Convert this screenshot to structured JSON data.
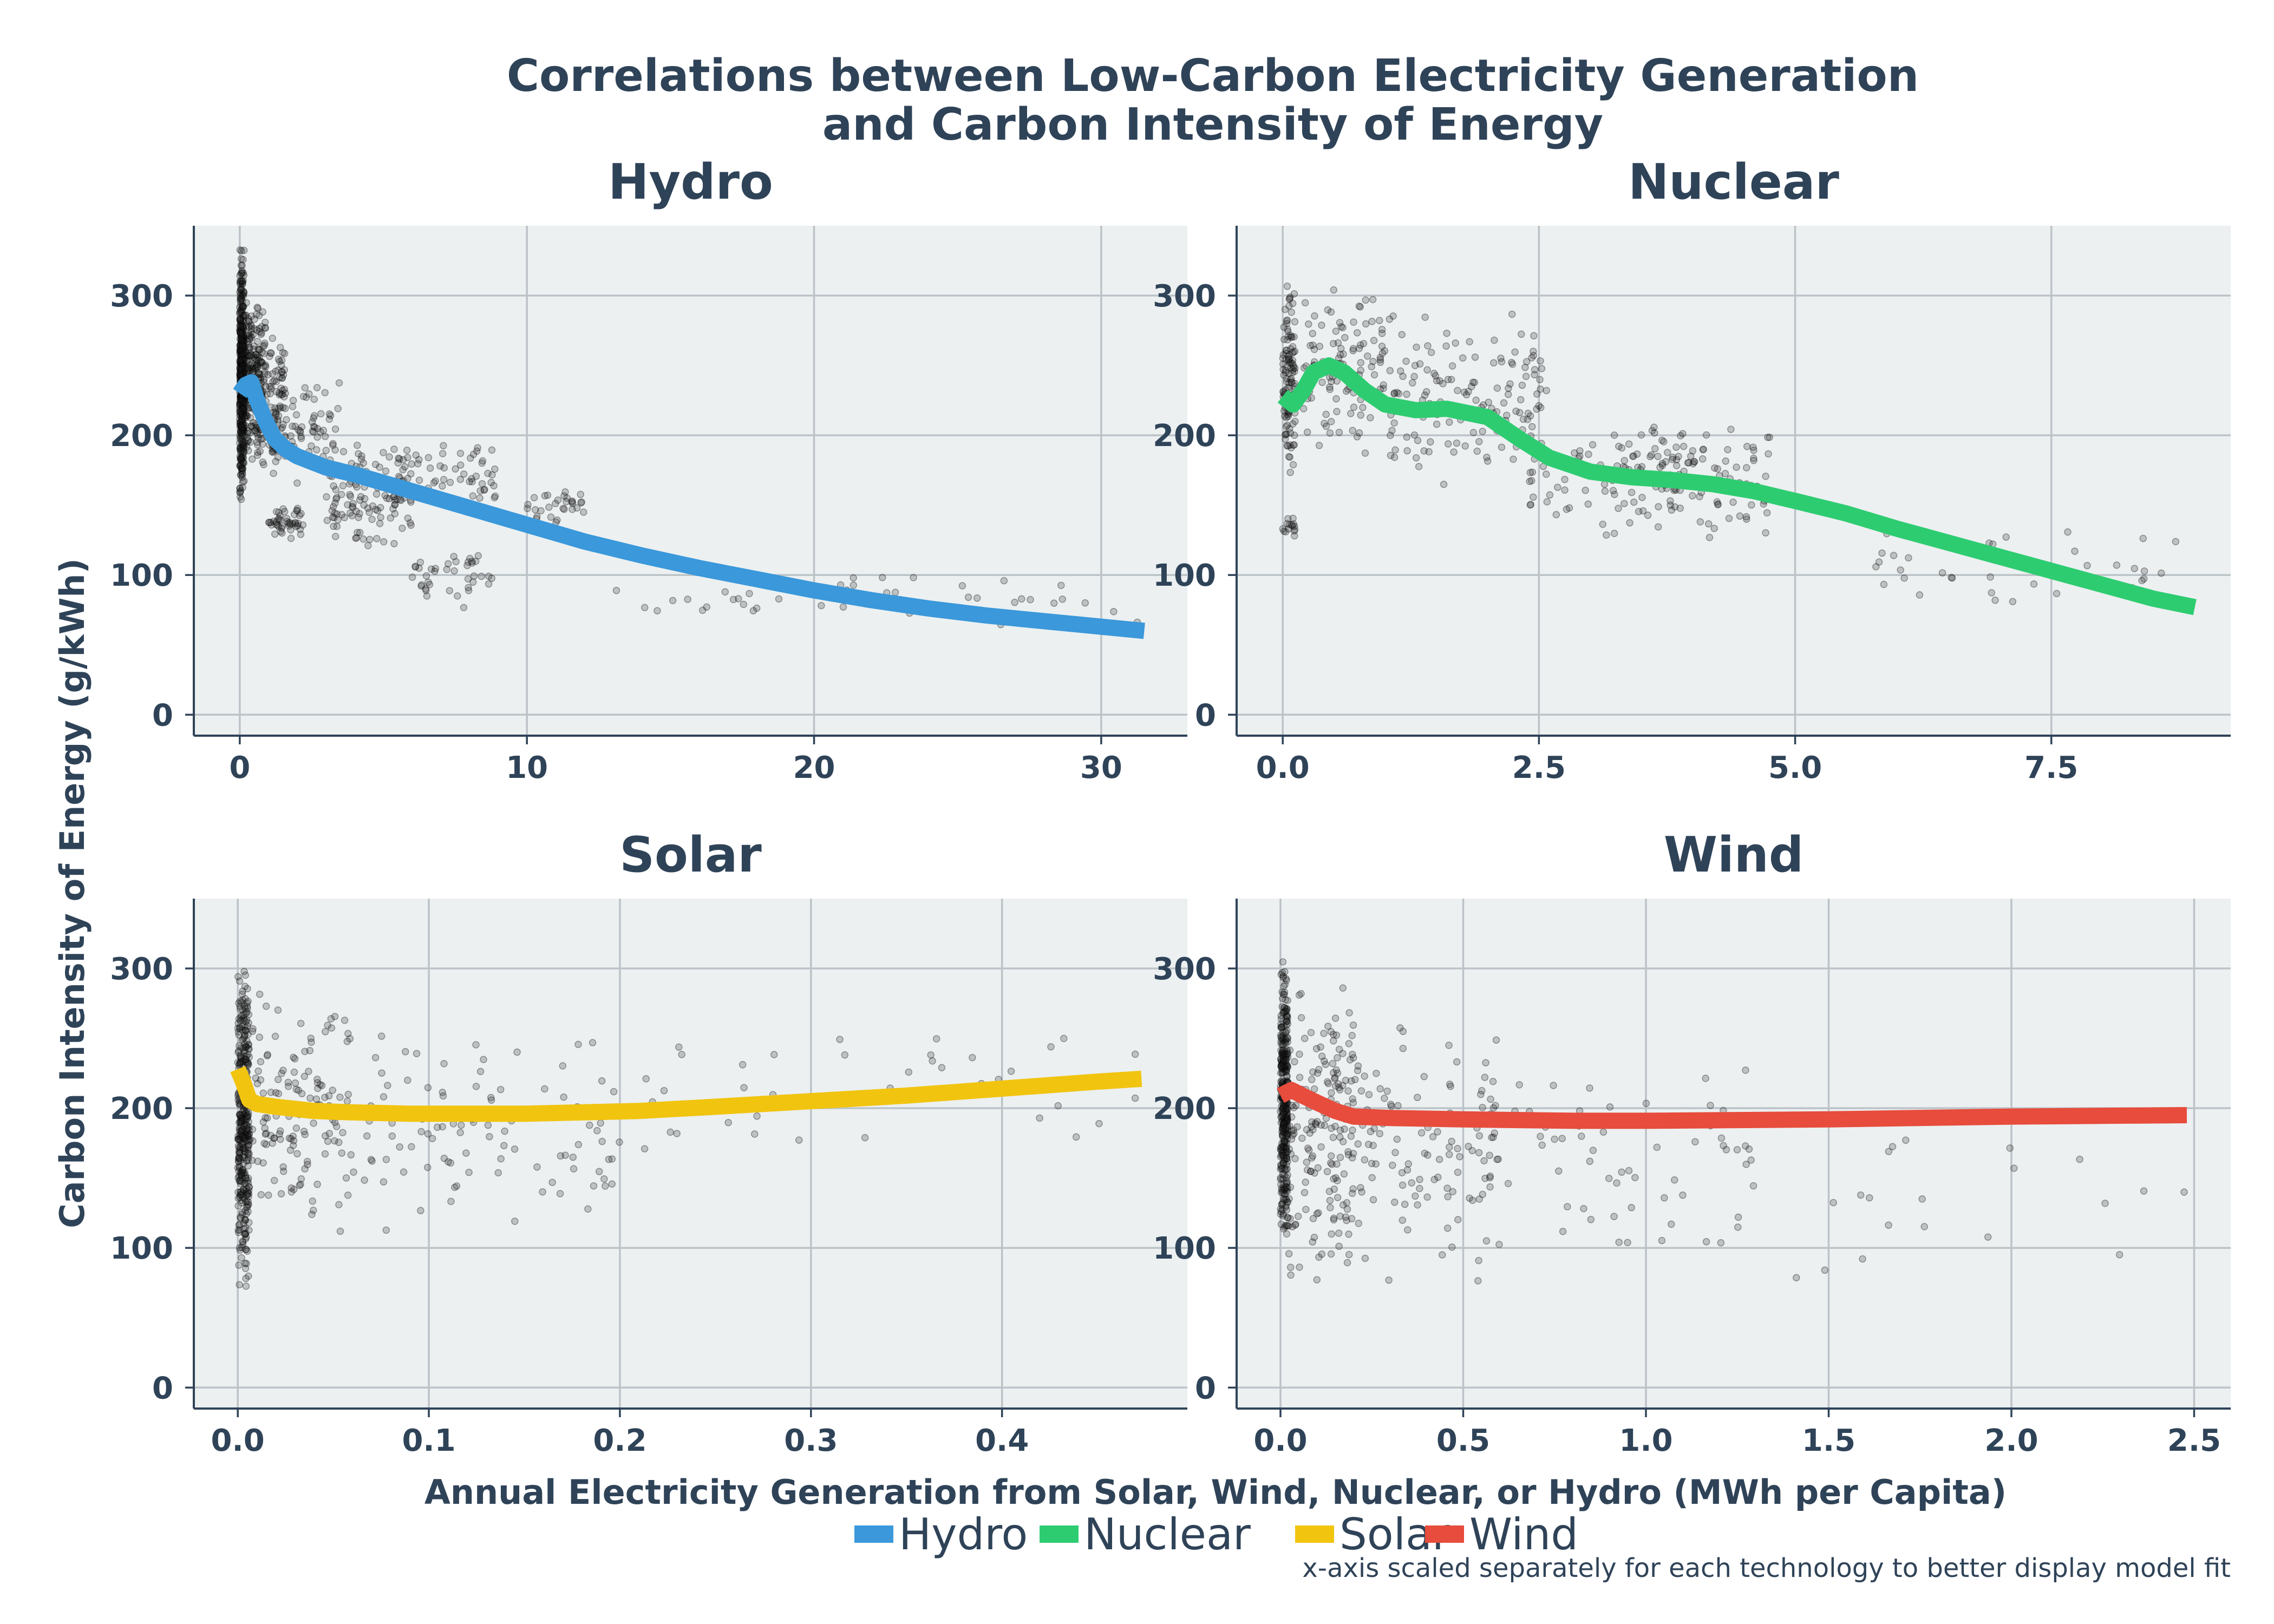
{
  "figure": {
    "title_line1": "Correlations between Low-Carbon Electricity Generation",
    "title_line2": "and Carbon Intensity of Energy",
    "ylabel": "Carbon Intensity of Energy (g/kWh)",
    "xlabel": "Annual Electricity Generation from Solar, Wind, Nuclear, or Hydro (MWh per Capita)",
    "note": "x-axis scaled separately for each technology to better display model fit"
  },
  "legend": {
    "placement": "bottom-center",
    "items": [
      {
        "label": "Hydro",
        "color": "#3a98db"
      },
      {
        "label": "Nuclear",
        "color": "#2ecc71"
      },
      {
        "label": "Solar",
        "color": "#f1c40f"
      },
      {
        "label": "Wind",
        "color": "#e74c3c"
      }
    ]
  },
  "chart_data": [
    {
      "type": "scatter",
      "title": "Hydro",
      "color": "#3a98db",
      "xlim": [
        -1.6,
        33
      ],
      "ylim": [
        -15,
        350
      ],
      "xticks": [
        0,
        10,
        20,
        30
      ],
      "xtick_labels": [
        "0",
        "10",
        "20",
        "30"
      ],
      "yticks": [
        0,
        100,
        200,
        300
      ],
      "ytick_labels": [
        "0",
        "100",
        "200",
        "300"
      ],
      "grid": true,
      "fit_line": {
        "x": [
          0,
          0.2,
          0.4,
          0.6,
          0.9,
          1.2,
          1.6,
          2,
          3,
          4,
          5,
          6,
          8,
          10,
          12,
          14,
          16,
          18,
          20,
          22,
          24,
          26,
          28,
          30,
          31.5
        ],
        "y": [
          230,
          236,
          238,
          225,
          210,
          198,
          190,
          185,
          177,
          172,
          166,
          160,
          148,
          136,
          124,
          114,
          105,
          97,
          89,
          82,
          76,
          71,
          67,
          63,
          60
        ]
      },
      "scatter_clusters": [
        {
          "x": [
            0.0,
            0.15
          ],
          "y": [
            150,
            335
          ],
          "n": 520
        },
        {
          "x": [
            0.15,
            0.9
          ],
          "y": [
            175,
            300
          ],
          "n": 260
        },
        {
          "x": [
            0.9,
            1.6
          ],
          "y": [
            170,
            280
          ],
          "n": 90
        },
        {
          "x": [
            1.0,
            2.2
          ],
          "y": [
            125,
            150
          ],
          "n": 45
        },
        {
          "x": [
            1.5,
            3.5
          ],
          "y": [
            165,
            245
          ],
          "n": 60
        },
        {
          "x": [
            3.0,
            6.0
          ],
          "y": [
            110,
            200
          ],
          "n": 120
        },
        {
          "x": [
            5.5,
            9.0
          ],
          "y": [
            140,
            200
          ],
          "n": 60
        },
        {
          "x": [
            6.0,
            9.0
          ],
          "y": [
            75,
            120
          ],
          "n": 40
        },
        {
          "x": [
            10.0,
            12.0
          ],
          "y": [
            135,
            165
          ],
          "n": 30
        },
        {
          "x": [
            13.0,
            32.0
          ],
          "y": [
            62,
            100
          ],
          "n": 45
        }
      ]
    },
    {
      "type": "scatter",
      "title": "Nuclear",
      "color": "#2ecc71",
      "xlim": [
        -0.45,
        9.25
      ],
      "ylim": [
        -15,
        350
      ],
      "xticks": [
        0,
        2.5,
        5,
        7.5
      ],
      "xtick_labels": [
        "0.0",
        "2.5",
        "5.0",
        "7.5"
      ],
      "yticks": [
        0,
        100,
        200,
        300
      ],
      "ytick_labels": [
        "0",
        "100",
        "200",
        "300"
      ],
      "grid": true,
      "fit_line": {
        "x": [
          0,
          0.1,
          0.2,
          0.3,
          0.45,
          0.6,
          0.8,
          1.0,
          1.3,
          1.6,
          2.0,
          2.3,
          2.6,
          3.0,
          3.4,
          3.8,
          4.2,
          4.6,
          5.0,
          5.5,
          6.0,
          6.5,
          7.0,
          7.5,
          8.0,
          8.5,
          8.9
        ],
        "y": [
          228,
          222,
          232,
          245,
          250,
          245,
          232,
          222,
          218,
          219,
          213,
          198,
          184,
          174,
          170,
          168,
          165,
          160,
          153,
          144,
          133,
          123,
          113,
          103,
          93,
          83,
          77
        ]
      },
      "scatter_clusters": [
        {
          "x": [
            0.0,
            0.12
          ],
          "y": [
            170,
            310
          ],
          "n": 120
        },
        {
          "x": [
            0.0,
            0.12
          ],
          "y": [
            125,
            145
          ],
          "n": 15
        },
        {
          "x": [
            0.2,
            1.0
          ],
          "y": [
            180,
            310
          ],
          "n": 120
        },
        {
          "x": [
            1.0,
            2.6
          ],
          "y": [
            160,
            295
          ],
          "n": 150
        },
        {
          "x": [
            2.4,
            4.8
          ],
          "y": [
            120,
            210
          ],
          "n": 140
        },
        {
          "x": [
            3.3,
            4.8
          ],
          "y": [
            150,
            210
          ],
          "n": 40
        },
        {
          "x": [
            5.5,
            8.8
          ],
          "y": [
            75,
            135
          ],
          "n": 40
        }
      ]
    },
    {
      "type": "scatter",
      "title": "Solar",
      "color": "#f1c40f",
      "xlim": [
        -0.023,
        0.497
      ],
      "ylim": [
        -15,
        350
      ],
      "xticks": [
        0,
        0.1,
        0.2,
        0.3,
        0.4
      ],
      "xtick_labels": [
        "0.0",
        "0.1",
        "0.2",
        "0.3",
        "0.4"
      ],
      "yticks": [
        0,
        100,
        200,
        300
      ],
      "ytick_labels": [
        "0",
        "100",
        "200",
        "300"
      ],
      "grid": true,
      "fit_line": {
        "x": [
          0,
          0.003,
          0.006,
          0.01,
          0.02,
          0.04,
          0.06,
          0.09,
          0.12,
          0.15,
          0.18,
          0.21,
          0.25,
          0.3,
          0.35,
          0.4,
          0.45,
          0.473
        ],
        "y": [
          228,
          218,
          206,
          203,
          201,
          198,
          197,
          196,
          196,
          196,
          197,
          198,
          201,
          205,
          209,
          214,
          219,
          221
        ]
      },
      "scatter_clusters": [
        {
          "x": [
            0.0,
            0.006
          ],
          "y": [
            65,
            310
          ],
          "n": 380
        },
        {
          "x": [
            0.006,
            0.06
          ],
          "y": [
            100,
            300
          ],
          "n": 140
        },
        {
          "x": [
            0.06,
            0.2
          ],
          "y": [
            110,
            265
          ],
          "n": 110
        },
        {
          "x": [
            0.2,
            0.47
          ],
          "y": [
            165,
            260
          ],
          "n": 40
        }
      ]
    },
    {
      "type": "scatter",
      "title": "Wind",
      "color": "#e74c3c",
      "xlim": [
        -0.12,
        2.6
      ],
      "ylim": [
        -15,
        350
      ],
      "xticks": [
        0,
        0.5,
        1.0,
        1.5,
        2.0,
        2.5
      ],
      "xtick_labels": [
        "0.0",
        "0.5",
        "1.0",
        "1.5",
        "2.0",
        "2.5"
      ],
      "yticks": [
        0,
        100,
        200,
        300
      ],
      "ytick_labels": [
        "0",
        "100",
        "200",
        "300"
      ],
      "grid": true,
      "fit_line": {
        "x": [
          0,
          0.03,
          0.06,
          0.1,
          0.15,
          0.2,
          0.3,
          0.5,
          0.8,
          1.0,
          1.5,
          2.0,
          2.48
        ],
        "y": [
          209,
          213,
          209,
          204,
          198,
          194,
          193,
          192,
          191,
          191,
          192,
          194,
          195
        ]
      },
      "scatter_clusters": [
        {
          "x": [
            0.0,
            0.02
          ],
          "y": [
            100,
            310
          ],
          "n": 380
        },
        {
          "x": [
            0.02,
            0.2
          ],
          "y": [
            70,
            300
          ],
          "n": 180
        },
        {
          "x": [
            0.2,
            0.6
          ],
          "y": [
            65,
            270
          ],
          "n": 120
        },
        {
          "x": [
            0.6,
            1.3
          ],
          "y": [
            80,
            250
          ],
          "n": 60
        },
        {
          "x": [
            1.4,
            2.5
          ],
          "y": [
            75,
            215
          ],
          "n": 20
        }
      ]
    }
  ]
}
